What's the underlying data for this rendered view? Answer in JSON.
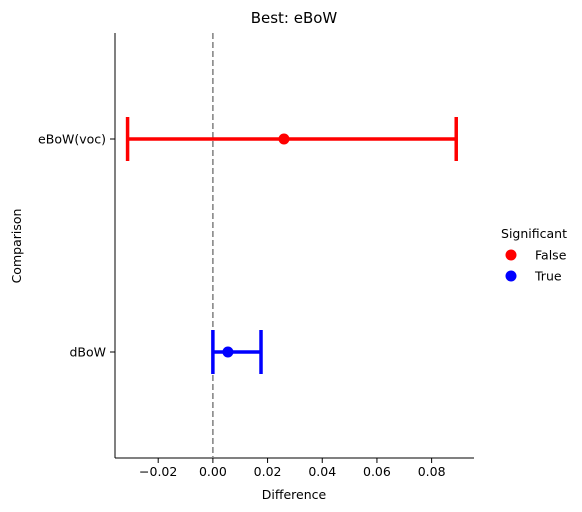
{
  "chart_data": {
    "type": "pointplot",
    "title": "Best: eBoW",
    "xlabel": "Difference",
    "ylabel": "Comparison",
    "xlim": [
      -0.0358,
      0.0955
    ],
    "xticks": [
      -0.02,
      0.0,
      0.02,
      0.04,
      0.06,
      0.08
    ],
    "xtick_labels": [
      "−0.02",
      "0.00",
      "0.02",
      "0.04",
      "0.06",
      "0.08"
    ],
    "categories": [
      "eBoW(voc)",
      "dBoW"
    ],
    "points": [
      {
        "category": "eBoW(voc)",
        "value": 0.026,
        "ci_low": -0.0312,
        "ci_high": 0.089,
        "significant": "False"
      },
      {
        "category": "dBoW",
        "value": 0.0055,
        "ci_low": 0.0,
        "ci_high": 0.0176,
        "significant": "True"
      }
    ],
    "reference_line": {
      "x": 0,
      "style": "dashed",
      "color": "#808080"
    },
    "legend": {
      "title": "Significant",
      "placement": "right",
      "entries": [
        {
          "label": "False",
          "color": "#ff0000"
        },
        {
          "label": "True",
          "color": "#0000ff"
        }
      ]
    },
    "grid": false
  }
}
